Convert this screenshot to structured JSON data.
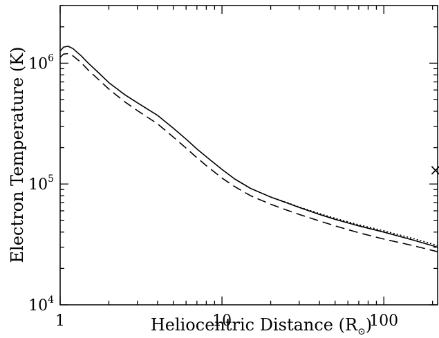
{
  "chart_data": {
    "type": "line",
    "xlabel": "Heliocentric Distance (R",
    "xlabel_symbol": "⊙",
    "xlabel_close": ")",
    "ylabel": "Electron Temperature (K)",
    "xscale": "log",
    "yscale": "log",
    "xlim": [
      1,
      215
    ],
    "ylim": [
      10000,
      3000000
    ],
    "grid": false,
    "x_ticks": [
      {
        "value": 1,
        "label": "1"
      },
      {
        "value": 10,
        "label": "10"
      },
      {
        "value": 100,
        "label": "100"
      }
    ],
    "y_ticks": [
      {
        "value": 10000,
        "base": "10",
        "exp": "4"
      },
      {
        "value": 100000,
        "base": "10",
        "exp": "5"
      },
      {
        "value": 1000000,
        "base": "10",
        "exp": "6"
      }
    ],
    "series": [
      {
        "style": "solid",
        "x": [
          1.0,
          1.05,
          1.12,
          1.2,
          1.35,
          1.5,
          1.75,
          2.0,
          2.5,
          3.0,
          4.0,
          5.0,
          6.0,
          7.0,
          8.0,
          10.0,
          12.0,
          15.0,
          20.0,
          25.0,
          30.0,
          40.0,
          50.0,
          70.0,
          100.0,
          150.0,
          215.0
        ],
        "y": [
          1260000,
          1360000,
          1380000,
          1320000,
          1150000,
          995000,
          820000,
          690000,
          550000,
          470000,
          370000,
          290000,
          235000,
          195000,
          168000,
          132000,
          110000,
          92000,
          78000,
          70000,
          64000,
          56000,
          51000,
          45000,
          40000,
          34500,
          30000
        ]
      },
      {
        "style": "dotted",
        "x": [
          20.0,
          25.0,
          30.0,
          40.0,
          50.0,
          70.0,
          100.0,
          150.0,
          215.0
        ],
        "y": [
          78000,
          70500,
          64500,
          57000,
          52000,
          46000,
          41000,
          35500,
          31000
        ]
      },
      {
        "style": "dashed",
        "x": [
          1.0,
          1.05,
          1.12,
          1.2,
          1.35,
          1.5,
          1.75,
          2.0,
          2.5,
          3.0,
          4.0,
          5.0,
          6.0,
          7.0,
          8.0,
          10.0,
          12.0,
          15.0,
          20.0,
          25.0,
          30.0,
          40.0,
          50.0,
          70.0,
          100.0,
          150.0,
          215.0
        ],
        "y": [
          1120000,
          1190000,
          1200000,
          1150000,
          1010000,
          870000,
          720000,
          610000,
          480000,
          405000,
          315000,
          245000,
          198000,
          165000,
          142000,
          112000,
          95000,
          80000,
          68000,
          61000,
          56000,
          49500,
          45000,
          39500,
          35000,
          31000,
          27500
        ]
      }
    ],
    "marker": {
      "symbol": "×",
      "x": 215,
      "y": 130000
    }
  }
}
